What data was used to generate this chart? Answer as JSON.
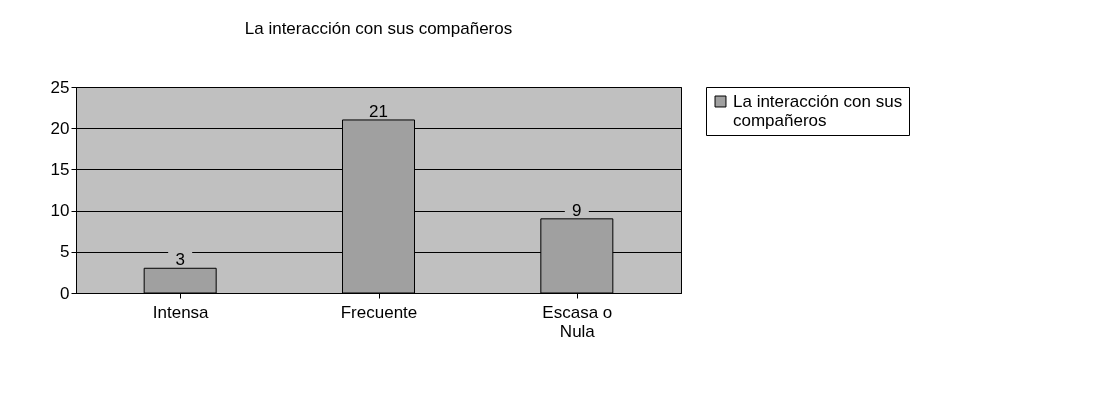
{
  "chart_data": {
    "type": "bar",
    "title": "La interacción con sus compañeros",
    "categories": [
      "Intensa",
      "Frecuente",
      "Escasa o Nula"
    ],
    "series": [
      {
        "name": "La interacción con sus compañeros",
        "color": "#a0a0a0",
        "values": [
          3,
          21,
          9
        ]
      }
    ],
    "ylim": [
      0,
      25
    ],
    "yticks": [
      0,
      5,
      10,
      15,
      20,
      25
    ],
    "grid": "y",
    "legend": "right",
    "data_labels": true
  }
}
